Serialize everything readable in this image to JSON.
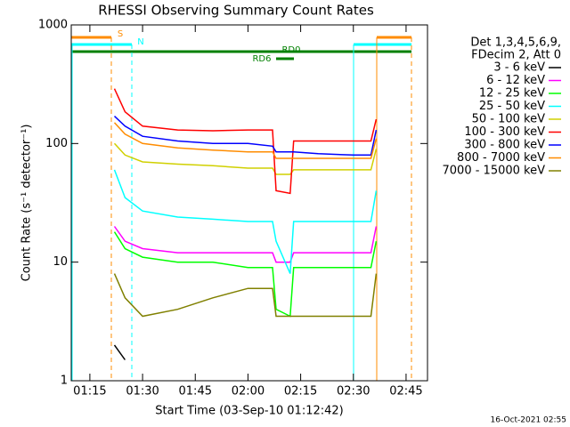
{
  "chart_data": {
    "type": "line",
    "title": "RHESSI Observing Summary Count Rates",
    "x_label": "Start Time (03-Sep-10 01:12:42)",
    "y_label": "Count Rate (s⁻¹ detector⁻¹)",
    "legend_title": [
      "Det 1,3,4,5,6,9,",
      "FDecim 2, Att 0"
    ],
    "timestamp": "16-Oct-2021 02:55",
    "annotations": [
      "S",
      "N",
      "RD0",
      "RD6"
    ],
    "log_y": true,
    "xlim": [
      69.7,
      171.1
    ],
    "ylim": [
      1,
      1000
    ],
    "xticks": [
      {
        "value": 75,
        "label": "01:15"
      },
      {
        "value": 90,
        "label": "01:30"
      },
      {
        "value": 105,
        "label": "01:45"
      },
      {
        "value": 120,
        "label": "02:00"
      },
      {
        "value": 135,
        "label": "02:15"
      },
      {
        "value": 150,
        "label": "02:30"
      },
      {
        "value": 165,
        "label": "02:45"
      }
    ],
    "yticks": [
      1,
      10,
      100,
      1000
    ],
    "x": [
      82,
      85,
      90,
      100,
      110,
      120,
      127,
      128,
      132,
      133,
      140,
      150,
      155,
      156.5
    ],
    "series": [
      {
        "name": "3 - 6 keV",
        "color": "#000000",
        "values": [
          2,
          1.5,
          null,
          null,
          null,
          null,
          null,
          null,
          null,
          null,
          null,
          null,
          null,
          null
        ]
      },
      {
        "name": "6 - 12 keV",
        "color": "#ff00ff",
        "values": [
          20,
          15,
          13,
          12,
          12,
          12,
          12,
          10,
          10,
          12,
          12,
          12,
          12,
          20
        ]
      },
      {
        "name": "12 - 25 keV",
        "color": "#00ff00",
        "values": [
          18,
          13,
          11,
          10,
          10,
          9,
          9,
          4,
          3.5,
          9,
          9,
          9,
          9,
          15
        ]
      },
      {
        "name": "25 - 50 keV",
        "color": "#00ffff",
        "values": [
          60,
          35,
          27,
          24,
          23,
          22,
          22,
          15,
          8,
          22,
          22,
          22,
          22,
          40
        ]
      },
      {
        "name": "50 - 100 keV",
        "color": "#d0d000",
        "values": [
          100,
          80,
          70,
          67,
          65,
          62,
          62,
          55,
          55,
          60,
          60,
          60,
          60,
          90
        ]
      },
      {
        "name": "100 - 300 keV",
        "color": "#ff0000",
        "values": [
          290,
          185,
          140,
          130,
          128,
          130,
          130,
          40,
          38,
          105,
          105,
          105,
          105,
          160
        ]
      },
      {
        "name": "300 - 800 keV",
        "color": "#0000ff",
        "values": [
          170,
          140,
          115,
          105,
          100,
          100,
          95,
          85,
          85,
          85,
          82,
          80,
          80,
          130
        ]
      },
      {
        "name": "800 - 7000 keV",
        "color": "#ff8c00",
        "values": [
          150,
          120,
          100,
          92,
          88,
          85,
          85,
          75,
          75,
          75,
          75,
          75,
          75,
          110
        ]
      },
      {
        "name": "7000 - 15000 keV",
        "color": "#808000",
        "values": [
          8,
          5,
          3.5,
          4,
          5,
          6,
          6,
          3.5,
          3.5,
          3.5,
          3.5,
          3.5,
          3.5,
          8
        ]
      }
    ]
  }
}
